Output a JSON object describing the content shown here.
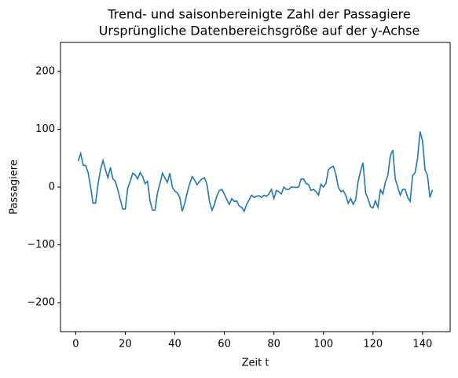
{
  "chart_data": {
    "type": "line",
    "title": "Trend- und saisonbereinigte Zahl der Passagiere",
    "subtitle": "Ursprüngliche Datenbereichsgröße auf der y-Achse",
    "xlabel": "Zeit t",
    "ylabel": "Passagiere",
    "x": [
      1,
      2,
      3,
      4,
      5,
      6,
      7,
      8,
      9,
      10,
      11,
      12,
      13,
      14,
      15,
      16,
      17,
      18,
      19,
      20,
      21,
      22,
      23,
      24,
      25,
      26,
      27,
      28,
      29,
      30,
      31,
      32,
      33,
      34,
      35,
      36,
      37,
      38,
      39,
      40,
      41,
      42,
      43,
      44,
      45,
      46,
      47,
      48,
      49,
      50,
      51,
      52,
      53,
      54,
      55,
      56,
      57,
      58,
      59,
      60,
      61,
      62,
      63,
      64,
      65,
      66,
      67,
      68,
      69,
      70,
      71,
      72,
      73,
      74,
      75,
      76,
      77,
      78,
      79,
      80,
      81,
      82,
      83,
      84,
      85,
      86,
      87,
      88,
      89,
      90,
      91,
      92,
      93,
      94,
      95,
      96,
      97,
      98,
      99,
      100,
      101,
      102,
      103,
      104,
      105,
      106,
      107,
      108,
      109,
      110,
      111,
      112,
      113,
      114,
      115,
      116,
      117,
      118,
      119,
      120,
      121,
      122,
      123,
      124,
      125,
      126,
      127,
      128,
      129,
      130,
      131,
      132,
      133,
      134,
      135,
      136,
      137,
      138,
      139,
      140,
      141,
      142,
      143,
      144
    ],
    "series": [
      {
        "name": "Passagiere",
        "color": "#1f77b4",
        "values": [
          45,
          58,
          38,
          37,
          25,
          0,
          -28,
          -28,
          5,
          30,
          46,
          30,
          16,
          34,
          14,
          10,
          -5,
          -22,
          -38,
          -38,
          -2,
          10,
          24,
          21,
          14,
          25,
          18,
          6,
          10,
          -24,
          -40,
          -40,
          -10,
          6,
          24,
          16,
          8,
          24,
          0,
          -7,
          -10,
          -18,
          -42,
          -28,
          -10,
          6,
          18,
          12,
          4,
          10,
          14,
          16,
          4,
          -25,
          -40,
          -30,
          -15,
          -6,
          -4,
          -12,
          -22,
          -30,
          -20,
          -25,
          -24,
          -33,
          -35,
          -42,
          -30,
          -22,
          -14,
          -18,
          -16,
          -15,
          -18,
          -14,
          -16,
          -12,
          -4,
          -20,
          -6,
          -8,
          -12,
          0,
          -4,
          -4,
          0,
          0,
          -1,
          0,
          14,
          14,
          6,
          4,
          -6,
          -4,
          -8,
          -14,
          5,
          0,
          6,
          30,
          34,
          36,
          22,
          0,
          -8,
          -6,
          -14,
          -28,
          -20,
          -30,
          -22,
          10,
          28,
          42,
          -10,
          -20,
          -34,
          -36,
          -24,
          -35,
          -5,
          -12,
          8,
          20,
          54,
          64,
          14,
          0,
          -14,
          -4,
          -4,
          -18,
          -25,
          20,
          25,
          50,
          96,
          80,
          30,
          20,
          -18,
          -5
        ]
      }
    ],
    "xlim": [
      -6.15,
      151.15
    ],
    "ylim": [
      -250,
      250
    ],
    "xticks": [
      0,
      20,
      40,
      60,
      80,
      100,
      120,
      140
    ],
    "yticks": [
      {
        "value": -200,
        "label": "−200"
      },
      {
        "value": -100,
        "label": "−100"
      },
      0,
      100,
      200
    ]
  }
}
